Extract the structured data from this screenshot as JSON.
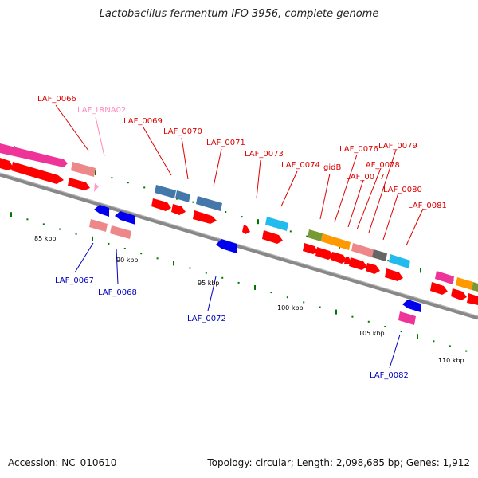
{
  "title": "Lactobacillus fermentum IFO 3956, complete genome",
  "accession_label": "Accession: NC_010610",
  "summary_label": "Topology: circular; Length: 2,098,685 bp; Genes: 1,912",
  "colors": {
    "backbone": "#888888",
    "cds_arrow": "#ff0000",
    "label_top": "#dd0000",
    "label_bottom": "#0000bb",
    "trna_label": "#ff88bb",
    "tick": "#007700",
    "magenta": "#ee3399",
    "salmon": "#ee8888",
    "steelblue": "#4477aa",
    "cyan": "#22bbee",
    "olive": "#779933",
    "orange": "#ff9900",
    "dark_gray": "#666666",
    "blue": "#0000ee",
    "trna": "#ff99cc"
  },
  "scale_labels": [
    "85 kbp",
    "90 kbp",
    "95 kbp",
    "100 kbp",
    "105 kbp",
    "110 kbp"
  ],
  "gene_labels_top": [
    "LAF_0066",
    "LAF_tRNA02",
    "LAF_0069",
    "LAF_0070",
    "LAF_0071",
    "LAF_0073",
    "LAF_0074",
    "gidB",
    "LAF_0076",
    "LAF_0077",
    "LAF_0078",
    "LAF_0079",
    "LAF_0080",
    "LAF_0081"
  ],
  "gene_labels_bottom": [
    "LAF_0067",
    "LAF_0068",
    "LAF_0072",
    "LAF_0082"
  ]
}
